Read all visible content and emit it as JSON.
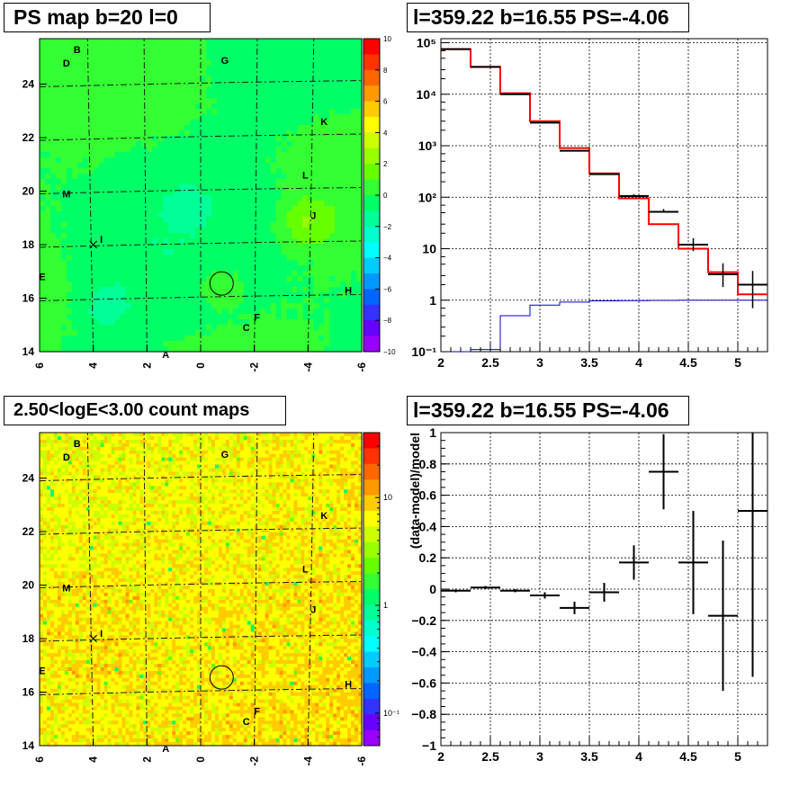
{
  "titles": {
    "ps_map": "PS map b=20 l=0",
    "spectrum": "l=359.22 b=16.55 PS=-4.06",
    "count_map": "2.50<logE<3.00 count maps",
    "residual": "l=359.22 b=16.55 PS=-4.06"
  },
  "maps": {
    "x_ticks": [
      "6",
      "4",
      "2",
      "0",
      "-2",
      "-4",
      "-6"
    ],
    "y_ticks": [
      "14",
      "16",
      "18",
      "20",
      "22",
      "24"
    ],
    "sources": [
      "A",
      "B",
      "C",
      "D",
      "E",
      "F",
      "G",
      "H",
      "I",
      "J",
      "K",
      "L",
      "M"
    ]
  },
  "ps_colorbar": {
    "ticks": [
      "10",
      "8",
      "6",
      "4",
      "2",
      "0",
      "−2",
      "−4",
      "−6",
      "−8",
      "−10"
    ]
  },
  "count_colorbar": {
    "ticks": [
      "10",
      "1",
      "10⁻¹"
    ]
  },
  "chart_data": [
    {
      "type": "heatmap",
      "title": "PS map b=20 l=0",
      "xlim": [
        6,
        -6
      ],
      "ylim": [
        14,
        25.7
      ],
      "zlim": [
        -10,
        10
      ],
      "colorbar": "linear",
      "point_source_position": {
        "l": -0.78,
        "b": 16.55
      },
      "cross_marker": {
        "l": 4.0,
        "b": 18.0
      }
    },
    {
      "type": "line",
      "title": "l=359.22 b=16.55 PS=-4.06",
      "log_y": true,
      "xlim": [
        2,
        5.3
      ],
      "ylim": [
        0.1,
        120000
      ],
      "y_ticks": [
        "10⁻¹",
        "1",
        "10",
        "10²",
        "10³",
        "10⁴",
        "10⁵"
      ],
      "x_ticks": [
        "2",
        "2.5",
        "3",
        "3.5",
        "4",
        "4.5",
        "5"
      ],
      "series": [
        {
          "color": "#ff0000",
          "edges": [
            2.0,
            2.3,
            2.6,
            2.9,
            3.2,
            3.5,
            3.8,
            4.1,
            4.4,
            4.7,
            5.0,
            5.3
          ],
          "values": [
            75000,
            34000,
            10500,
            3000,
            900,
            290,
            95,
            30,
            10,
            3.5,
            1.3
          ]
        },
        {
          "color": "#0000cc",
          "edges": [
            2.0,
            2.3,
            2.6,
            2.9,
            3.2,
            3.5,
            3.8,
            4.1,
            4.4,
            4.7,
            5.0,
            5.3
          ],
          "values": [
            0.1,
            0.11,
            0.5,
            0.8,
            0.92,
            0.97,
            0.98,
            0.99,
            1.0,
            1.0,
            1.0
          ]
        },
        {
          "color": "#000000",
          "x": [
            2.15,
            2.45,
            2.75,
            3.05,
            3.35,
            3.65,
            3.95,
            4.25,
            4.55,
            4.85,
            5.15
          ],
          "values": [
            75000,
            34000,
            10000,
            2800,
            800,
            280,
            105,
            52,
            12,
            3.2,
            2.0
          ],
          "err_low": [
            0,
            0,
            0,
            0,
            0,
            0,
            0,
            0,
            3,
            1.4,
            1.3
          ],
          "err_high": [
            0,
            0,
            0,
            0,
            0,
            0,
            10,
            7,
            4,
            2.0,
            1.7
          ]
        }
      ]
    },
    {
      "type": "heatmap",
      "title": "2.50<logE<3.00 count maps",
      "xlim": [
        6,
        -6
      ],
      "ylim": [
        14,
        25.7
      ],
      "colorbar": "log",
      "zlim": [
        0.05,
        40
      ],
      "point_source_position": {
        "l": -0.78,
        "b": 16.55
      },
      "cross_marker": {
        "l": 4.0,
        "b": 18.0
      }
    },
    {
      "type": "scatter",
      "title": "l=359.22 b=16.55 PS=-4.06",
      "ylabel": "(data-model)/model",
      "xlim": [
        2,
        5.3
      ],
      "ylim": [
        -1,
        1
      ],
      "x_ticks": [
        "2",
        "2.5",
        "3",
        "3.5",
        "4",
        "4.5",
        "5"
      ],
      "y_ticks": [
        "−1",
        "−0.8",
        "−0.6",
        "−0.4",
        "−0.2",
        "0",
        "0.2",
        "0.4",
        "0.6",
        "0.8",
        "1"
      ],
      "x": [
        2.15,
        2.45,
        2.75,
        3.05,
        3.35,
        3.65,
        3.95,
        4.25,
        4.55,
        4.85,
        5.15
      ],
      "values": [
        -0.01,
        0.01,
        -0.01,
        -0.04,
        -0.12,
        -0.02,
        0.17,
        0.75,
        0.17,
        -0.17,
        0.5
      ],
      "yerr": [
        0.01,
        0.01,
        0.01,
        0.02,
        0.04,
        0.06,
        0.11,
        0.24,
        0.33,
        0.48,
        1.06
      ],
      "xerr": 0.15
    }
  ]
}
